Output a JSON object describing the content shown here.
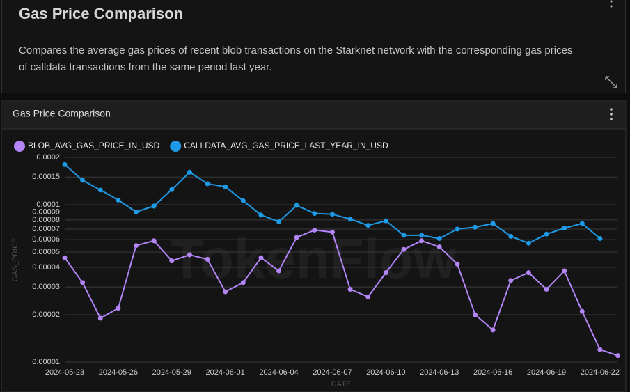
{
  "header": {
    "title": "Gas Price Comparison",
    "description": "Compares the average gas prices of recent blob transactions on the Starknet network with the corresponding gas prices of calldata transactions from the same period last year."
  },
  "chart_data": {
    "type": "line",
    "title": "Gas Price Comparison",
    "watermark": "TokenFlow",
    "x_label": "DATE",
    "y_label": "GAS_PRICE",
    "log_scale": true,
    "grid": true,
    "x": [
      "2024-05-23",
      "2024-05-24",
      "2024-05-25",
      "2024-05-26",
      "2024-05-27",
      "2024-05-28",
      "2024-05-29",
      "2024-05-30",
      "2024-05-31",
      "2024-06-01",
      "2024-06-02",
      "2024-06-03",
      "2024-06-04",
      "2024-06-05",
      "2024-06-06",
      "2024-06-07",
      "2024-06-08",
      "2024-06-09",
      "2024-06-10",
      "2024-06-11",
      "2024-06-12",
      "2024-06-13",
      "2024-06-14",
      "2024-06-15",
      "2024-06-16",
      "2024-06-17",
      "2024-06-18",
      "2024-06-19",
      "2024-06-20",
      "2024-06-21",
      "2024-06-22",
      "2024-06-23"
    ],
    "xticks": [
      "2024-05-23",
      "2024-05-26",
      "2024-05-29",
      "2024-06-01",
      "2024-06-04",
      "2024-06-07",
      "2024-06-10",
      "2024-06-13",
      "2024-06-16",
      "2024-06-19",
      "2024-06-22"
    ],
    "ylim": [
      1e-05,
      0.0002
    ],
    "yticks": [
      1e-05,
      2e-05,
      3e-05,
      4e-05,
      5e-05,
      6e-05,
      7e-05,
      8e-05,
      9e-05,
      0.0001,
      0.00015,
      0.0002
    ],
    "series": [
      {
        "name": "BLOB_AVG_GAS_PRICE_IN_USD",
        "color": "#b385f7",
        "values": [
          4.6e-05,
          3.2e-05,
          1.9e-05,
          2.2e-05,
          5.5e-05,
          5.9e-05,
          4.4e-05,
          4.8e-05,
          4.5e-05,
          2.8e-05,
          3.2e-05,
          4.6e-05,
          3.8e-05,
          6.2e-05,
          6.9e-05,
          6.7e-05,
          2.9e-05,
          2.6e-05,
          3.7e-05,
          5.2e-05,
          5.9e-05,
          5.4e-05,
          4.2e-05,
          2e-05,
          1.6e-05,
          3.3e-05,
          3.7e-05,
          2.9e-05,
          3.8e-05,
          2.1e-05,
          1.2e-05,
          1.1e-05
        ]
      },
      {
        "name": "CALLDATA_AVG_GAS_PRICE_LAST_YEAR_IN_USD",
        "color": "#1e9ae6",
        "values": [
          0.00018,
          0.000143,
          0.000124,
          0.000107,
          9e-05,
          9.8e-05,
          0.000125,
          0.000161,
          0.000136,
          0.00013,
          0.000106,
          8.6e-05,
          7.8e-05,
          9.9e-05,
          8.8e-05,
          8.7e-05,
          8.1e-05,
          7.4e-05,
          7.9e-05,
          6.4e-05,
          6.4e-05,
          6.1e-05,
          7e-05,
          7.2e-05,
          7.6e-05,
          6.3e-05,
          5.7e-05,
          6.5e-05,
          7.1e-05,
          7.6e-05,
          6.1e-05,
          null
        ]
      }
    ]
  }
}
